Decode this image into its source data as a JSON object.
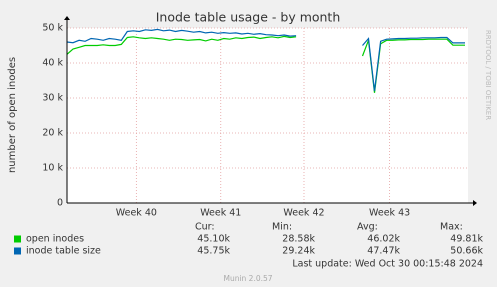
{
  "chart_data": {
    "type": "line",
    "title": "Inode table usage - by month",
    "y_label": "number of open inodes",
    "xlim": [
      0,
      66.5
    ],
    "xticks": [
      {
        "value": 11.5,
        "label": "Week 40"
      },
      {
        "value": 25.5,
        "label": "Week 41"
      },
      {
        "value": 39.3,
        "label": "Week 42"
      },
      {
        "value": 53.5,
        "label": "Week 43"
      }
    ],
    "ylim": [
      0,
      50000
    ],
    "yticks": [
      0,
      {
        "value": 10000,
        "label": "10 k"
      },
      {
        "value": 20000,
        "label": "20 k"
      },
      {
        "value": 30000,
        "label": "30 k"
      },
      {
        "value": 40000,
        "label": "40 k"
      },
      {
        "value": 50000,
        "label": "50 k"
      }
    ],
    "grid": true,
    "stat_headers": [
      "Cur:",
      "Min:",
      "Avg:",
      "Max:"
    ],
    "series": [
      {
        "name": "open inodes",
        "color": "#00cc00",
        "stats": [
          "45.10k",
          "28.58k",
          "46.02k",
          "49.81k"
        ],
        "values": [
          42500,
          44000,
          44500,
          45000,
          45000,
          45000,
          45200,
          45000,
          45000,
          45300,
          47300,
          47500,
          47200,
          47000,
          47200,
          47000,
          46800,
          46500,
          46800,
          46700,
          46500,
          46600,
          46700,
          46300,
          46800,
          46500,
          47000,
          46800,
          47200,
          47000,
          47300,
          47400,
          47000,
          47300,
          47500,
          47200,
          47600,
          47300,
          47500,
          null,
          null,
          null,
          null,
          null,
          null,
          null,
          null,
          null,
          null,
          42000,
          46500,
          31500,
          45500,
          46500,
          46500,
          46600,
          46600,
          46700,
          46700,
          46700,
          46800,
          46800,
          46800,
          46800,
          45100,
          45100,
          45100
        ]
      },
      {
        "name": "inode table size",
        "color": "#0066b3",
        "stats": [
          "45.75k",
          "29.24k",
          "47.47k",
          "50.66k"
        ],
        "values": [
          46000,
          45800,
          46500,
          46200,
          47000,
          46800,
          46500,
          47000,
          46800,
          46500,
          49000,
          49200,
          49000,
          49500,
          49300,
          49600,
          49200,
          49400,
          49000,
          49300,
          49100,
          48800,
          49000,
          48600,
          48800,
          48500,
          48700,
          48500,
          48600,
          48300,
          48500,
          48200,
          48400,
          48100,
          48000,
          47800,
          48000,
          47700,
          47800,
          null,
          null,
          null,
          null,
          null,
          null,
          null,
          null,
          null,
          null,
          45000,
          47000,
          32000,
          46200,
          46800,
          46900,
          47000,
          47000,
          47100,
          47100,
          47200,
          47200,
          47200,
          47300,
          47300,
          45750,
          45750,
          45750
        ]
      }
    ],
    "last_update": "Last update: Wed Oct 30 00:15:48 2024",
    "footer": "Munin 2.0.57",
    "watermark": "RRDTOOL / TOBI OETIKER"
  }
}
